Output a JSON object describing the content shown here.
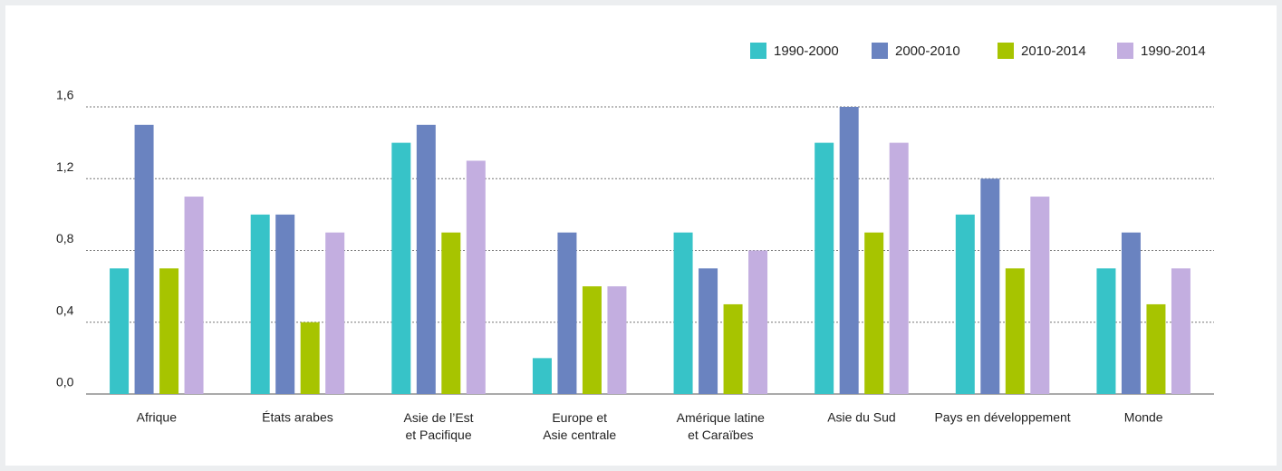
{
  "chart_data": {
    "type": "bar",
    "categories": [
      "Afrique",
      "États arabes",
      "Asie de l’Est\net Pacifique",
      "Europe et\nAsie centrale",
      "Amérique latine\net Caraïbes",
      "Asie du Sud",
      "Pays en développement",
      "Monde"
    ],
    "series": [
      {
        "name": "1990-2000",
        "color": "#37c3c8",
        "values": [
          0.7,
          1.0,
          1.4,
          0.2,
          0.9,
          1.4,
          1.0,
          0.7
        ]
      },
      {
        "name": "2000-2010",
        "color": "#6a83c0",
        "values": [
          1.5,
          1.0,
          1.5,
          0.9,
          0.7,
          1.6,
          1.2,
          0.9
        ]
      },
      {
        "name": "2010-2014",
        "color": "#a7c400",
        "values": [
          0.7,
          0.4,
          0.9,
          0.6,
          0.5,
          0.9,
          0.7,
          0.5
        ]
      },
      {
        "name": "1990-2014",
        "color": "#c3aee0",
        "values": [
          1.1,
          0.9,
          1.3,
          0.6,
          0.8,
          1.4,
          1.1,
          0.7
        ]
      }
    ],
    "ylim": [
      0,
      1.6
    ],
    "yticks": [
      {
        "value": 0,
        "label": "0,0"
      },
      {
        "value": 0.4,
        "label": "0,4"
      },
      {
        "value": 0.8,
        "label": "0,8"
      },
      {
        "value": 1.2,
        "label": "1,2"
      },
      {
        "value": 1.6,
        "label": "1,6"
      }
    ],
    "grid": true,
    "legend": "top-right"
  }
}
